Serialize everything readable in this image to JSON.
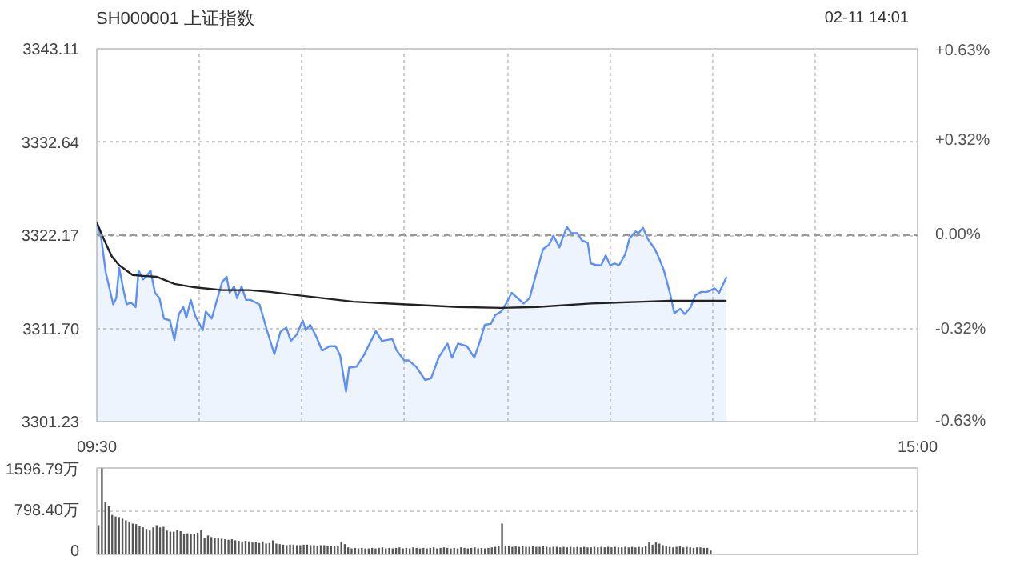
{
  "chart_data": [
    {
      "type": "area",
      "title": "SH000001 上证指数",
      "annotations": [
        "02-11 14:01"
      ],
      "xlim": [
        9.5,
        15
      ],
      "xticks": [
        {
          "value": 9.5,
          "label": "09:30"
        },
        {
          "value": 10.1875,
          "label": null
        },
        {
          "value": 10.875,
          "label": null
        },
        {
          "value": 11.5625,
          "label": null
        },
        {
          "value": 12.25,
          "label": null
        },
        {
          "value": 12.9375,
          "label": null
        },
        {
          "value": 13.625,
          "label": null
        },
        {
          "value": 14.3125,
          "label": null
        },
        {
          "value": 15,
          "label": "15:00"
        }
      ],
      "ylim": [
        3301.23,
        3343.11
      ],
      "yticks": [
        {
          "value": 3301.23,
          "label": "3301.23"
        },
        {
          "value": 3311.7,
          "label": "3311.70"
        },
        {
          "value": 3322.17,
          "label": "3322.17"
        },
        {
          "value": 3332.64,
          "label": "3332.64"
        },
        {
          "value": 3343.11,
          "label": "3343.11"
        }
      ],
      "y2lim": [
        -0.63,
        0.63
      ],
      "y2ticks": [
        {
          "value": -0.63,
          "label": "-0.63%"
        },
        {
          "value": -0.32,
          "label": "-0.32%"
        },
        {
          "value": 0,
          "label": "0.00%"
        },
        {
          "value": 0.32,
          "label": "+0.32%"
        },
        {
          "value": 0.63,
          "label": "+0.63%"
        }
      ],
      "grid": true,
      "ref_lines": [
        {
          "axis": "y",
          "value": 3322.17,
          "color": "#999999",
          "line_style": "dashed"
        }
      ],
      "series": [
        {
          "type": "area",
          "color": "#5b8ff9",
          "x": [
            9.5,
            9.53,
            9.56,
            9.61,
            9.63,
            9.65,
            9.68,
            9.7,
            9.73,
            9.76,
            9.78,
            9.81,
            9.84,
            9.86,
            9.89,
            9.92,
            9.95,
            9.99,
            10.02,
            10.05,
            10.08,
            10.1,
            10.13,
            10.16,
            10.21,
            10.23,
            10.27,
            10.3,
            10.34,
            10.37,
            10.39,
            10.42,
            10.44,
            10.47,
            10.5,
            10.53,
            10.59,
            10.64,
            10.69,
            10.73,
            10.77,
            10.8,
            10.84,
            10.88,
            10.9,
            10.93,
            10.97,
            11.01,
            11.06,
            11.1,
            11.13,
            11.17,
            11.19,
            11.24,
            11.29,
            11.37,
            11.41,
            11.48,
            11.51,
            11.56,
            11.59,
            11.64,
            11.7,
            11.74,
            11.79,
            11.85,
            11.88,
            11.92,
            11.98,
            12.03,
            12.07,
            12.1,
            12.14,
            12.17,
            12.21,
            12.24,
            12.28,
            12.32,
            12.36,
            12.4,
            12.45,
            12.49,
            12.53,
            12.56,
            12.6,
            12.62,
            12.65,
            12.68,
            12.72,
            12.75,
            12.79,
            12.81,
            12.85,
            12.88,
            12.91,
            12.94,
            12.97,
            13.0,
            13.04,
            13.07,
            13.11,
            13.13,
            13.16,
            13.19,
            13.24,
            13.27,
            13.3,
            13.34,
            13.37,
            13.41,
            13.44,
            13.48,
            13.51,
            13.55,
            13.59,
            13.64,
            13.67,
            13.72
          ],
          "values": [
            3323.6,
            3321.8,
            3318.0,
            3314.4,
            3315.1,
            3318.5,
            3315.9,
            3314.4,
            3314.6,
            3314.1,
            3318.2,
            3317.2,
            3317.7,
            3318.2,
            3315.7,
            3315.1,
            3312.8,
            3312.6,
            3310.4,
            3313.3,
            3314.1,
            3312.9,
            3314.9,
            3313.1,
            3311.5,
            3313.6,
            3312.8,
            3314.6,
            3316.9,
            3317.5,
            3315.7,
            3316.4,
            3315.1,
            3316.4,
            3314.9,
            3314.9,
            3314.4,
            3311.5,
            3308.8,
            3311.3,
            3311.8,
            3310.3,
            3311.0,
            3312.6,
            3311.5,
            3312.1,
            3310.8,
            3309.2,
            3309.7,
            3309.7,
            3308.7,
            3304.6,
            3307.3,
            3307.4,
            3308.7,
            3311.4,
            3310.3,
            3310.5,
            3309.2,
            3308.1,
            3308.1,
            3307.4,
            3305.9,
            3306.1,
            3308.4,
            3310.0,
            3308.4,
            3310.0,
            3309.7,
            3308.4,
            3310.4,
            3312.1,
            3312.2,
            3313.2,
            3313.6,
            3314.4,
            3315.7,
            3315.1,
            3314.5,
            3315.1,
            3318.2,
            3320.6,
            3321.1,
            3322.1,
            3320.8,
            3321.8,
            3323.1,
            3322.4,
            3322.4,
            3321.6,
            3321.3,
            3319.0,
            3318.8,
            3318.8,
            3319.9,
            3318.8,
            3319.0,
            3318.8,
            3320.0,
            3321.8,
            3322.6,
            3322.4,
            3323.0,
            3321.8,
            3320.6,
            3319.5,
            3318.2,
            3315.7,
            3313.4,
            3313.9,
            3313.3,
            3314.1,
            3315.4,
            3315.8,
            3315.8,
            3316.2,
            3315.7,
            3317.5
          ]
        },
        {
          "type": "line",
          "color": "#222222",
          "x": [
            9.5,
            9.55,
            9.6,
            9.65,
            9.74,
            9.81,
            9.9,
            10.02,
            10.16,
            10.34,
            10.52,
            10.66,
            10.86,
            11.22,
            11.57,
            11.92,
            12.21,
            12.45,
            12.81,
            13.16,
            13.34,
            13.72
          ],
          "values": [
            3323.6,
            3321.6,
            3319.8,
            3318.8,
            3317.7,
            3317.6,
            3317.5,
            3316.7,
            3316.3,
            3316.0,
            3316.0,
            3315.8,
            3315.4,
            3314.7,
            3314.4,
            3314.1,
            3314.0,
            3314.1,
            3314.5,
            3314.7,
            3314.8,
            3314.8
          ]
        }
      ]
    },
    {
      "type": "bar",
      "ylim": [
        0,
        1596.79
      ],
      "yticks": [
        {
          "value": 0,
          "label": "0"
        },
        {
          "value": 798.4,
          "label": "798.40万"
        },
        {
          "value": 1596.79,
          "label": "1596.79万"
        }
      ],
      "grid": "y",
      "tick_labels": "y",
      "categories": [
        null,
        null,
        null,
        null,
        null,
        null,
        null,
        null,
        null,
        null,
        null,
        null,
        null,
        null,
        null,
        null,
        null,
        null,
        null,
        null,
        null,
        null,
        null,
        null,
        null,
        null,
        null,
        null,
        null,
        null,
        null,
        null,
        null,
        null,
        null,
        null,
        null,
        null,
        null,
        null,
        null,
        null,
        null,
        null,
        null,
        null,
        null,
        null,
        null,
        null,
        null,
        null,
        null,
        null,
        null,
        null,
        null,
        null,
        null,
        null,
        null,
        null,
        null,
        null,
        null,
        null,
        null,
        null,
        null,
        null,
        null,
        null,
        null,
        null,
        null,
        null,
        null,
        null,
        null,
        null,
        null,
        null,
        null,
        null,
        null,
        null,
        null,
        null,
        null,
        null,
        null,
        null,
        null,
        null,
        null,
        null,
        null,
        null,
        null,
        null,
        null,
        null,
        null,
        null,
        null,
        null,
        null,
        null,
        null,
        null,
        null,
        null,
        null,
        null,
        null,
        null,
        null,
        null,
        null,
        null,
        null,
        null,
        null,
        null,
        null,
        null,
        null,
        null,
        null,
        null,
        null,
        null,
        null,
        null,
        null,
        null,
        null,
        null,
        null,
        null,
        null,
        null,
        null,
        null,
        null,
        null,
        null,
        null,
        null,
        null,
        null,
        null,
        null,
        null,
        null,
        null,
        null,
        null,
        null,
        null,
        null,
        null,
        null,
        null,
        null,
        null,
        null,
        null,
        null,
        null,
        null,
        null,
        null,
        null,
        null,
        null,
        null,
        null,
        null,
        null,
        null,
        null,
        null,
        null,
        null,
        null,
        null,
        null,
        null,
        null,
        null,
        null,
        null,
        null,
        null,
        null,
        null,
        null,
        null,
        null,
        null,
        null,
        null,
        null,
        null,
        null,
        null,
        null,
        null,
        null,
        null,
        null,
        null,
        null,
        null,
        null,
        null,
        null,
        null,
        null,
        null,
        null,
        null,
        null,
        null,
        null,
        null,
        null,
        null,
        null,
        null,
        null,
        null,
        null,
        null,
        null,
        null,
        null,
        null,
        null
      ],
      "series": [
        {
          "color": "#555555",
          "values": [
            540,
            1590,
            960,
            900,
            730,
            700,
            690,
            660,
            630,
            590,
            570,
            560,
            520,
            500,
            470,
            440,
            500,
            540,
            500,
            510,
            440,
            420,
            420,
            450,
            430,
            380,
            390,
            380,
            380,
            400,
            450,
            310,
            350,
            320,
            300,
            310,
            290,
            280,
            270,
            280,
            260,
            250,
            240,
            250,
            240,
            220,
            230,
            210,
            240,
            200,
            210,
            260,
            200,
            190,
            180,
            170,
            180,
            180,
            170,
            170,
            180,
            180,
            170,
            170,
            160,
            170,
            170,
            160,
            160,
            160,
            150,
            230,
            190,
            130,
            110,
            120,
            110,
            120,
            110,
            110,
            120,
            110,
            120,
            130,
            110,
            120,
            110,
            120,
            130,
            110,
            120,
            110,
            130,
            120,
            110,
            120,
            110,
            120,
            130,
            110,
            120,
            130,
            120,
            110,
            120,
            110,
            130,
            120,
            110,
            120,
            130,
            110,
            120,
            110,
            120,
            130,
            140,
            160,
            570,
            160,
            150,
            140,
            150,
            140,
            150,
            140,
            140,
            150,
            140,
            140,
            150,
            140,
            130,
            140,
            140,
            130,
            140,
            130,
            140,
            130,
            140,
            130,
            140,
            130,
            130,
            140,
            130,
            140,
            130,
            140,
            130,
            140,
            130,
            130,
            140,
            130,
            140,
            130,
            140,
            130,
            150,
            220,
            180,
            220,
            200,
            170,
            150,
            140,
            130,
            140,
            150,
            130,
            140,
            130,
            120,
            130,
            130,
            120,
            120,
            70,
            null,
            null,
            null,
            null,
            null,
            null,
            null,
            null,
            null,
            null,
            null,
            null,
            null,
            null,
            null,
            null,
            null,
            null,
            null,
            null,
            null,
            null,
            null,
            null,
            null,
            null,
            null,
            null,
            null,
            null,
            null,
            null,
            null,
            null,
            null,
            null,
            null,
            null,
            null,
            null,
            null,
            null,
            null,
            null,
            null,
            null,
            null,
            null,
            null,
            null,
            null,
            null,
            null,
            null,
            null,
            null,
            null,
            null,
            null,
            null
          ]
        }
      ]
    }
  ]
}
